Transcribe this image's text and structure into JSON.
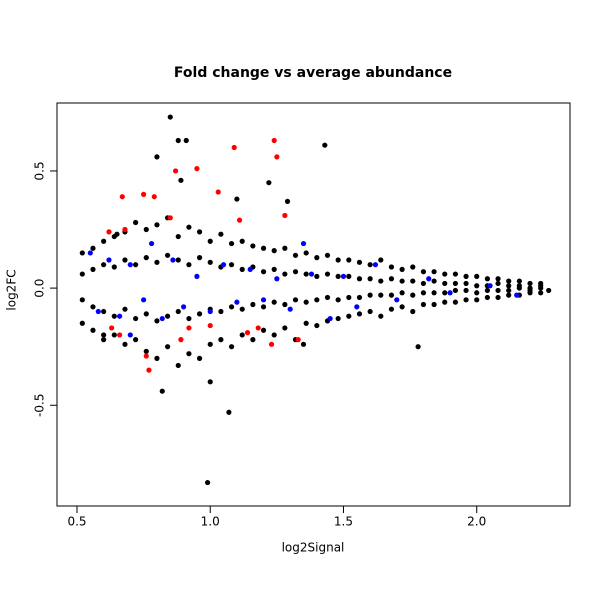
{
  "chart_data": {
    "type": "scatter",
    "title": "Fold change vs average abundance",
    "x_label": "log2Signal",
    "y_label": "log2FC",
    "xlim": [
      0.425,
      2.35
    ],
    "ylim": [
      -0.93,
      0.79
    ],
    "xticks": [
      0.5,
      {
        "value": 1,
        "label": "1.0"
      },
      1.5,
      {
        "value": 2,
        "label": "2.0"
      }
    ],
    "yticks": [
      -0.5,
      {
        "value": 0,
        "label": "0.0"
      },
      0.5
    ],
    "grid": false,
    "series": [
      {
        "color": "#000000",
        "x": [
          0.52,
          0.56,
          0.6,
          0.64,
          0.68,
          0.72,
          0.76,
          0.8,
          0.84,
          0.88,
          0.92,
          0.96,
          1.0,
          1.04,
          1.08,
          1.12,
          1.16,
          1.2,
          1.24,
          1.28,
          1.32,
          1.36,
          1.4,
          1.44,
          1.48,
          1.52,
          1.56,
          1.6,
          1.64,
          1.68,
          1.72,
          1.76,
          1.8,
          1.84,
          1.88,
          1.92,
          1.96,
          2.0,
          2.04,
          2.08,
          2.12,
          2.16,
          2.2,
          2.24,
          0.52,
          0.56,
          0.6,
          0.64,
          0.68,
          0.72,
          0.76,
          0.8,
          0.84,
          0.88,
          0.92,
          0.96,
          1.0,
          1.04,
          1.08,
          1.12,
          1.16,
          1.2,
          1.24,
          1.28,
          1.32,
          1.36,
          1.4,
          1.44,
          1.48,
          1.52,
          1.56,
          1.6,
          1.64,
          1.68,
          1.72,
          1.76,
          1.8,
          1.84,
          1.88,
          1.92,
          1.96,
          2.0,
          2.04,
          2.08,
          2.12,
          2.16,
          2.2,
          2.24,
          0.52,
          0.56,
          0.6,
          0.64,
          0.68,
          0.72,
          0.76,
          0.8,
          0.84,
          0.88,
          0.92,
          0.96,
          1.0,
          1.04,
          1.08,
          1.12,
          1.16,
          1.2,
          1.24,
          1.28,
          1.32,
          1.36,
          1.4,
          1.44,
          1.48,
          1.52,
          1.56,
          1.6,
          1.64,
          1.68,
          1.72,
          1.76,
          1.8,
          1.84,
          1.88,
          1.92,
          1.96,
          2.0,
          2.04,
          2.08,
          2.12,
          2.16,
          2.2,
          2.24,
          0.52,
          0.56,
          0.6,
          0.64,
          0.68,
          0.72,
          0.76,
          0.8,
          0.84,
          0.88,
          0.92,
          0.96,
          1.0,
          1.04,
          1.08,
          1.12,
          1.16,
          1.2,
          1.24,
          1.28,
          1.32,
          1.36,
          1.4,
          1.44,
          1.48,
          1.52,
          1.56,
          1.6,
          1.64,
          1.68,
          1.72,
          1.76,
          1.8,
          1.84,
          1.88,
          1.92,
          1.96,
          2.0,
          2.04,
          2.08,
          2.12,
          2.16,
          2.2,
          2.24,
          0.85,
          0.91,
          0.88,
          1.43,
          0.8,
          0.99,
          1.07,
          1.78,
          0.89,
          1.22,
          0.82,
          1.35,
          1.1,
          1.29,
          0.65,
          2.27,
          0.6,
          1.0
        ],
        "y": [
          0.15,
          0.17,
          0.2,
          0.22,
          0.24,
          0.28,
          0.25,
          0.27,
          0.3,
          0.22,
          0.26,
          0.24,
          0.2,
          0.23,
          0.19,
          0.2,
          0.18,
          0.17,
          0.16,
          0.17,
          0.14,
          0.15,
          0.13,
          0.14,
          0.12,
          0.12,
          0.11,
          0.1,
          0.12,
          0.09,
          0.08,
          0.09,
          0.07,
          0.07,
          0.06,
          0.06,
          0.05,
          0.05,
          0.04,
          0.04,
          0.03,
          0.03,
          0.02,
          0.02,
          -0.15,
          -0.18,
          -0.22,
          -0.2,
          -0.24,
          -0.22,
          -0.27,
          -0.3,
          -0.25,
          -0.33,
          -0.28,
          -0.3,
          -0.24,
          -0.22,
          -0.25,
          -0.2,
          -0.22,
          -0.18,
          -0.2,
          -0.17,
          -0.22,
          -0.15,
          -0.16,
          -0.14,
          -0.13,
          -0.12,
          -0.11,
          -0.1,
          -0.12,
          -0.09,
          -0.08,
          -0.1,
          -0.07,
          -0.07,
          -0.06,
          -0.06,
          -0.05,
          -0.05,
          -0.04,
          -0.04,
          -0.03,
          -0.03,
          -0.02,
          -0.02,
          0.06,
          0.08,
          0.1,
          0.09,
          0.12,
          0.1,
          0.13,
          0.11,
          0.14,
          0.12,
          0.1,
          0.13,
          0.11,
          0.09,
          0.1,
          0.08,
          0.09,
          0.07,
          0.08,
          0.06,
          0.07,
          0.06,
          0.05,
          0.06,
          0.05,
          0.05,
          0.04,
          0.04,
          0.03,
          0.04,
          0.03,
          0.03,
          0.02,
          0.03,
          0.02,
          0.02,
          0.02,
          0.01,
          0.01,
          0.02,
          0.01,
          0.01,
          0.0,
          0.01,
          -0.05,
          -0.08,
          -0.1,
          -0.12,
          -0.09,
          -0.13,
          -0.11,
          -0.14,
          -0.12,
          -0.1,
          -0.13,
          -0.11,
          -0.09,
          -0.1,
          -0.08,
          -0.09,
          -0.07,
          -0.08,
          -0.06,
          -0.07,
          -0.05,
          -0.06,
          -0.05,
          -0.04,
          -0.05,
          -0.04,
          -0.04,
          -0.03,
          -0.03,
          -0.03,
          -0.02,
          -0.03,
          -0.02,
          -0.02,
          -0.02,
          -0.01,
          -0.01,
          -0.02,
          -0.01,
          -0.01,
          -0.01,
          0.0,
          -0.01,
          0.0,
          0.73,
          0.63,
          0.63,
          0.61,
          0.56,
          -0.83,
          -0.53,
          -0.25,
          0.46,
          0.45,
          -0.44,
          -0.24,
          0.38,
          0.37,
          0.23,
          -0.01,
          -0.2,
          -0.4
        ]
      },
      {
        "color": "#0000ff",
        "x": [
          0.55,
          0.58,
          0.62,
          0.66,
          0.7,
          0.75,
          0.78,
          0.82,
          0.86,
          0.9,
          0.95,
          1.0,
          1.05,
          1.1,
          1.15,
          1.2,
          1.25,
          1.3,
          1.38,
          1.45,
          1.5,
          1.55,
          1.62,
          1.7,
          1.82,
          1.9,
          2.05,
          2.15,
          1.35,
          0.7
        ],
        "y": [
          0.15,
          -0.1,
          0.12,
          -0.12,
          0.1,
          -0.05,
          0.19,
          -0.13,
          0.12,
          -0.08,
          0.05,
          -0.1,
          0.1,
          -0.06,
          0.08,
          -0.05,
          0.04,
          -0.09,
          0.06,
          -0.13,
          0.05,
          -0.08,
          0.1,
          -0.05,
          0.04,
          -0.02,
          0.01,
          -0.03,
          0.19,
          -0.2
        ]
      },
      {
        "color": "#ff0000",
        "x": [
          0.67,
          0.75,
          0.79,
          0.87,
          0.95,
          1.09,
          1.24,
          1.25,
          1.03,
          1.11,
          1.28,
          0.85,
          0.62,
          0.68,
          0.63,
          0.66,
          0.76,
          0.77,
          0.89,
          1.18,
          1.23,
          1.33,
          0.92,
          1.14,
          1.0
        ],
        "y": [
          0.39,
          0.4,
          0.39,
          0.5,
          0.51,
          0.6,
          0.63,
          0.56,
          0.41,
          0.29,
          0.31,
          0.3,
          0.24,
          0.25,
          -0.17,
          -0.2,
          -0.29,
          -0.35,
          -0.22,
          -0.17,
          -0.24,
          -0.22,
          -0.17,
          -0.19,
          -0.16
        ]
      }
    ]
  }
}
